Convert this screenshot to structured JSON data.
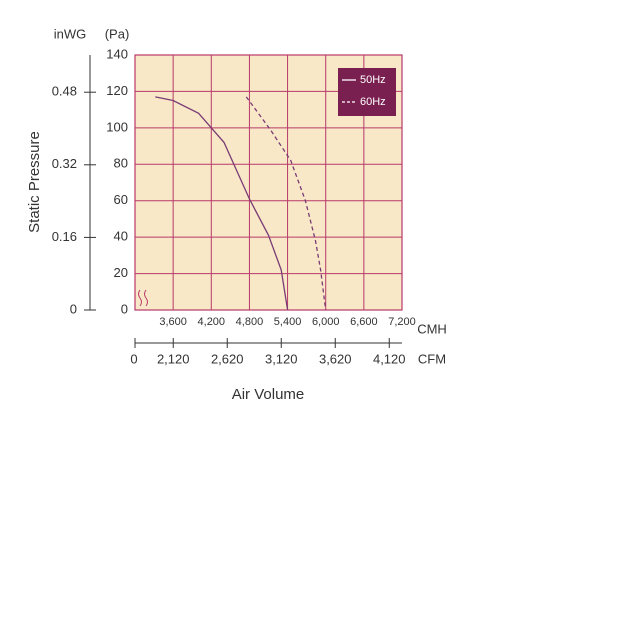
{
  "chart_data": {
    "type": "line",
    "y_unit_label": "inWG",
    "y2_unit_label": "(Pa)",
    "y_axis_label": "Static Pressure",
    "x_unit_label": "CMH",
    "x2_unit_label": "CFM",
    "x_axis_label": "Air Volume",
    "x2_break_label": "0",
    "xlim": [
      3000,
      7200
    ],
    "xticks": [
      {
        "value": 3600,
        "label": "3,600"
      },
      {
        "value": 4200,
        "label": "4,200"
      },
      {
        "value": 4800,
        "label": "4,800"
      },
      {
        "value": 5400,
        "label": "5,400"
      },
      {
        "value": 6000,
        "label": "6,000"
      },
      {
        "value": 6600,
        "label": "6,600"
      },
      {
        "value": 7200,
        "label": "7,200"
      }
    ],
    "x2lim": [
      1766,
      4238
    ],
    "x2ticks": [
      {
        "value": 2120,
        "label": "2,120"
      },
      {
        "value": 2620,
        "label": "2,620"
      },
      {
        "value": 3120,
        "label": "3,120"
      },
      {
        "value": 3620,
        "label": "3,620"
      },
      {
        "value": 4120,
        "label": "4,120"
      }
    ],
    "ylim": [
      0,
      140
    ],
    "yticks": [
      0,
      20,
      40,
      60,
      80,
      100,
      120,
      140
    ],
    "y2lim": [
      0,
      0.562
    ],
    "y2ticks": [
      0,
      0.16,
      0.32,
      0.48
    ],
    "grid": true,
    "legend": "top-right",
    "series": [
      {
        "name": "50Hz",
        "color": "#7a3b74",
        "dashed": false,
        "x": [
          3320,
          3600,
          4000,
          4400,
          4800,
          5100,
          5300,
          5400
        ],
        "values": [
          117,
          115,
          108,
          92,
          61,
          41,
          22,
          0
        ]
      },
      {
        "name": "60Hz",
        "color": "#7a3b74",
        "dashed": true,
        "x": [
          4750,
          5130,
          5450,
          5680,
          5840,
          5920,
          6000
        ],
        "values": [
          117,
          99,
          82,
          60,
          38,
          22,
          0
        ]
      }
    ]
  }
}
